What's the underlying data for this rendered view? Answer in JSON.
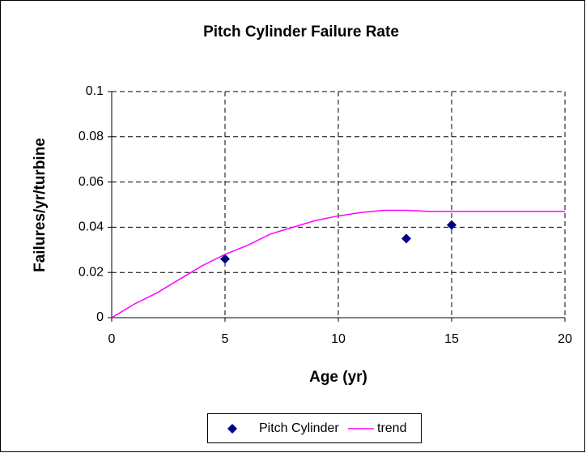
{
  "chart_data": {
    "type": "scatter",
    "title": "Pitch Cylinder Failure Rate",
    "x_label": "Age (yr)",
    "y_label": "Failures/yr/turbine",
    "xlim": [
      0,
      20
    ],
    "xticks": [
      0,
      5,
      10,
      15,
      20
    ],
    "ylim": [
      0,
      0.1
    ],
    "yticks": [
      0,
      0.02,
      0.04,
      0.06,
      0.08,
      0.1
    ],
    "grid": true,
    "legend": "bottom",
    "series": [
      {
        "name": "Pitch Cylinder",
        "color": "#000080",
        "style": "marker",
        "x": [
          5,
          13,
          15
        ],
        "values": [
          0.026,
          0.035,
          0.041
        ]
      },
      {
        "name": "trend",
        "color": "#ff00ff",
        "style": "line",
        "x": [
          0,
          1,
          2,
          3,
          4,
          5,
          6,
          7,
          8,
          9,
          10,
          11,
          12,
          13,
          14,
          15,
          16,
          17,
          18,
          19,
          20
        ],
        "values": [
          0,
          0.006,
          0.011,
          0.017,
          0.023,
          0.028,
          0.032,
          0.037,
          0.04,
          0.043,
          0.045,
          0.0465,
          0.0475,
          0.0475,
          0.047,
          0.047,
          0.047,
          0.047,
          0.047,
          0.047,
          0.047
        ]
      }
    ]
  }
}
